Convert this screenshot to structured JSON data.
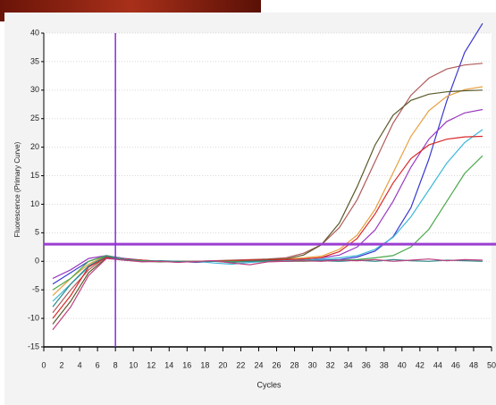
{
  "chart_data": {
    "type": "line",
    "xlabel": "Cycles",
    "ylabel": "Fluorescence (Primary Curve)",
    "x": [
      1,
      3,
      5,
      7,
      9,
      11,
      13,
      15,
      17,
      19,
      21,
      23,
      25,
      27,
      29,
      31,
      33,
      35,
      37,
      39,
      41,
      43,
      45,
      47,
      49
    ],
    "series": [
      {
        "color": "#b05a5a",
        "values": [
          -9,
          -5,
          -1.5,
          0.8,
          0.3,
          0.1,
          0,
          0,
          0,
          0.1,
          0.2,
          0.3,
          0.4,
          0.6,
          1.4,
          2.9,
          5.9,
          10.8,
          17.5,
          24.2,
          29.1,
          32.1,
          33.7,
          34.4,
          34.7
        ]
      },
      {
        "color": "#3a3ad0",
        "values": [
          -4,
          -2,
          0,
          1,
          0.5,
          0.2,
          0,
          0,
          0,
          0,
          0,
          0,
          0,
          0,
          0.1,
          0.2,
          0.3,
          0.75,
          1.8,
          4.3,
          9.4,
          17.9,
          28.1,
          36.6,
          41.7
        ]
      },
      {
        "color": "#e8a040",
        "values": [
          -6,
          -3,
          -0.5,
          1,
          0.4,
          0.1,
          0,
          0,
          0,
          0,
          0,
          0.1,
          0.2,
          0.4,
          0.6,
          0.9,
          2.1,
          4.6,
          9.1,
          15.5,
          21.9,
          26.4,
          28.9,
          30.1,
          30.6
        ]
      },
      {
        "color": "#5a5a2a",
        "values": [
          -11,
          -7,
          -2,
          0.6,
          0.2,
          0,
          -0.1,
          0,
          0,
          0,
          0.1,
          0.2,
          0.3,
          0.4,
          1.1,
          2.9,
          6.7,
          13.1,
          20.4,
          25.6,
          28.2,
          29.3,
          29.7,
          29.9,
          30
        ]
      },
      {
        "color": "#9a3ac0",
        "values": [
          -3,
          -1.5,
          0.5,
          1,
          0.3,
          0,
          0,
          0,
          -0.2,
          0,
          0,
          0,
          0.1,
          0.2,
          0.4,
          0.6,
          1.1,
          2.5,
          5.5,
          10.5,
          16.5,
          21.4,
          24.5,
          26,
          26.6
        ]
      },
      {
        "color": "#40b8d8",
        "values": [
          -7,
          -4,
          -1,
          0.8,
          0.2,
          0,
          0,
          0,
          0,
          -0.3,
          -0.5,
          -0.2,
          0,
          0.1,
          0.2,
          0.4,
          0.6,
          1,
          2.1,
          4.2,
          7.8,
          12.5,
          17.2,
          20.8,
          23.1
        ]
      },
      {
        "color": "#d82a2a",
        "values": [
          -10,
          -6,
          -1,
          0.7,
          0.4,
          0.2,
          0,
          0,
          0,
          0,
          0.1,
          0.2,
          0.2,
          0.3,
          0.4,
          0.65,
          1.7,
          4,
          8.3,
          13.7,
          18,
          20.4,
          21.4,
          21.8,
          21.9
        ]
      },
      {
        "color": "#4aa84a",
        "values": [
          -5,
          -3,
          0,
          1,
          0.3,
          0.1,
          0,
          0,
          0,
          0,
          0,
          0,
          0,
          0,
          0,
          0.1,
          0.2,
          0.3,
          0.6,
          1,
          2.5,
          5.6,
          10.5,
          15.4,
          18.5
        ]
      },
      {
        "color": "#2a8a8a",
        "values": [
          -8,
          -4,
          -0.8,
          0.9,
          0.3,
          0,
          0.1,
          0,
          -0.1,
          0,
          -0.2,
          0,
          0.1,
          0,
          0.2,
          0.1,
          0,
          0.2,
          0,
          0.3,
          0.1,
          0,
          0.2,
          0.1,
          0
        ]
      },
      {
        "color": "#c04080",
        "values": [
          -12,
          -8,
          -2.5,
          0.5,
          0.2,
          -0.1,
          0,
          -0.2,
          0,
          0.1,
          -0.3,
          -0.6,
          -0.1,
          0,
          0.1,
          0,
          0.2,
          0.1,
          0.3,
          0,
          0.2,
          0.4,
          0.1,
          0.3,
          0.2
        ]
      }
    ],
    "threshold": 3,
    "threshold_color": "#9b3fd0",
    "vertical_line": 8,
    "vertical_line_color": "#8a2be2",
    "xlim": [
      0,
      50
    ],
    "xticks": [
      0,
      2,
      4,
      6,
      8,
      10,
      12,
      14,
      16,
      18,
      20,
      22,
      24,
      26,
      28,
      30,
      32,
      34,
      36,
      38,
      40,
      42,
      44,
      46,
      48,
      50
    ],
    "ylim": [
      -15,
      40
    ],
    "yticks": [
      -15,
      -10,
      -5,
      0,
      5,
      10,
      15,
      20,
      25,
      30,
      35,
      40
    ],
    "grid": true
  }
}
